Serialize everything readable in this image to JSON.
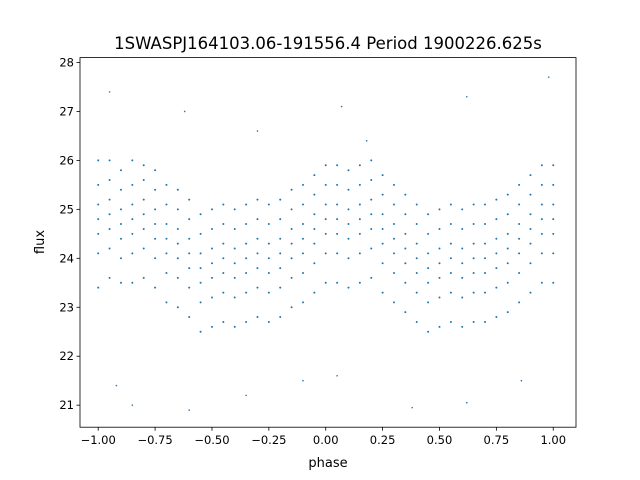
{
  "chart_data": {
    "type": "scatter",
    "title": "1SWASPJ164103.06-191556.4 Period 1900226.625s",
    "xlabel": "phase",
    "ylabel": "flux",
    "xlim": [
      -1.08,
      1.1
    ],
    "ylim": [
      20.55,
      28.1
    ],
    "xticks": [
      -1.0,
      -0.75,
      -0.5,
      -0.25,
      0.0,
      0.25,
      0.5,
      0.75,
      1.0
    ],
    "xtick_labels": [
      "−1.00",
      "−0.75",
      "−0.50",
      "−0.25",
      "0.00",
      "0.25",
      "0.50",
      "0.75",
      "1.00"
    ],
    "yticks": [
      21,
      22,
      23,
      24,
      25,
      26,
      27,
      28
    ],
    "ytick_labels": [
      "21",
      "22",
      "23",
      "24",
      "25",
      "26",
      "27",
      "28"
    ],
    "grid": false,
    "marker_color": "#1f77b4",
    "points": [
      [
        -1.0,
        [
          23.4,
          24.1,
          24.5,
          24.8,
          25.1,
          25.5,
          26.0
        ]
      ],
      [
        -0.95,
        [
          23.6,
          24.2,
          24.6,
          24.9,
          25.2,
          25.6,
          26.0
        ]
      ],
      [
        -0.9,
        [
          23.5,
          24.0,
          24.4,
          24.7,
          25.0,
          25.4,
          25.8
        ]
      ],
      [
        -0.85,
        [
          23.5,
          24.1,
          24.5,
          24.8,
          25.1,
          25.5,
          26.0
        ]
      ],
      [
        -0.8,
        [
          23.6,
          24.2,
          24.6,
          24.9,
          25.2,
          25.6,
          25.9
        ]
      ],
      [
        -0.75,
        [
          23.4,
          24.0,
          24.4,
          24.7,
          25.0,
          25.4,
          25.8
        ]
      ],
      [
        -0.7,
        [
          23.1,
          23.7,
          24.1,
          24.4,
          24.7,
          25.1,
          25.5
        ]
      ],
      [
        -0.65,
        [
          23.0,
          23.6,
          24.0,
          24.3,
          24.6,
          25.0,
          25.4
        ]
      ],
      [
        -0.6,
        [
          22.8,
          23.4,
          23.8,
          24.1,
          24.4,
          24.8,
          25.2
        ]
      ],
      [
        -0.55,
        [
          22.5,
          23.1,
          23.5,
          23.8,
          24.1,
          24.5,
          24.9
        ]
      ],
      [
        -0.5,
        [
          22.6,
          23.2,
          23.6,
          23.9,
          24.2,
          24.6,
          25.0
        ]
      ],
      [
        -0.45,
        [
          22.7,
          23.3,
          23.7,
          24.0,
          24.3,
          24.7,
          25.1
        ]
      ],
      [
        -0.4,
        [
          22.6,
          23.2,
          23.6,
          23.9,
          24.2,
          24.6,
          25.0
        ]
      ],
      [
        -0.35,
        [
          22.7,
          23.3,
          23.7,
          24.0,
          24.3,
          24.7,
          25.1
        ]
      ],
      [
        -0.3,
        [
          22.8,
          23.4,
          23.8,
          24.1,
          24.4,
          24.8,
          25.2
        ]
      ],
      [
        -0.25,
        [
          22.7,
          23.3,
          23.7,
          24.0,
          24.3,
          24.7,
          25.1
        ]
      ],
      [
        -0.2,
        [
          22.8,
          23.4,
          23.8,
          24.1,
          24.4,
          24.8,
          25.2
        ]
      ],
      [
        -0.15,
        [
          23.0,
          23.6,
          24.0,
          24.3,
          24.6,
          25.0,
          25.4
        ]
      ],
      [
        -0.1,
        [
          23.1,
          23.7,
          24.1,
          24.4,
          24.7,
          25.1,
          25.5
        ]
      ],
      [
        -0.05,
        [
          23.3,
          23.9,
          24.3,
          24.6,
          24.9,
          25.3,
          25.7
        ]
      ],
      [
        0.0,
        [
          23.5,
          24.1,
          24.5,
          24.8,
          25.1,
          25.5,
          25.9
        ]
      ],
      [
        0.05,
        [
          23.5,
          24.1,
          24.5,
          24.8,
          25.1,
          25.5,
          25.9
        ]
      ],
      [
        0.1,
        [
          23.4,
          24.0,
          24.4,
          24.7,
          25.0,
          25.4,
          25.8
        ]
      ],
      [
        0.15,
        [
          23.5,
          24.1,
          24.5,
          24.8,
          25.1,
          25.5,
          25.9
        ]
      ],
      [
        0.2,
        [
          23.6,
          24.2,
          24.6,
          24.9,
          25.2,
          25.6,
          26.0
        ]
      ],
      [
        0.25,
        [
          23.3,
          23.9,
          24.3,
          24.6,
          24.9,
          25.3,
          25.7
        ]
      ],
      [
        0.3,
        [
          23.1,
          23.7,
          24.1,
          24.4,
          24.7,
          25.1,
          25.5
        ]
      ],
      [
        0.35,
        [
          22.9,
          23.5,
          23.9,
          24.2,
          24.5,
          24.9,
          25.3
        ]
      ],
      [
        0.4,
        [
          22.7,
          23.3,
          23.7,
          24.0,
          24.3,
          24.7,
          25.1
        ]
      ],
      [
        0.45,
        [
          22.5,
          23.1,
          23.5,
          23.8,
          24.1,
          24.5,
          24.9
        ]
      ],
      [
        0.5,
        [
          22.6,
          23.2,
          23.6,
          23.9,
          24.2,
          24.6,
          25.0
        ]
      ],
      [
        0.55,
        [
          22.7,
          23.3,
          23.7,
          24.0,
          24.3,
          24.7,
          25.1
        ]
      ],
      [
        0.6,
        [
          22.6,
          23.2,
          23.6,
          23.9,
          24.2,
          24.6,
          25.0
        ]
      ],
      [
        0.65,
        [
          22.7,
          23.3,
          23.7,
          24.0,
          24.3,
          24.7,
          25.1
        ]
      ],
      [
        0.7,
        [
          22.7,
          23.3,
          23.7,
          24.0,
          24.3,
          24.7,
          25.1
        ]
      ],
      [
        0.75,
        [
          22.8,
          23.4,
          23.8,
          24.1,
          24.4,
          24.8,
          25.2
        ]
      ],
      [
        0.8,
        [
          22.9,
          23.5,
          23.9,
          24.2,
          24.5,
          24.9,
          25.3
        ]
      ],
      [
        0.85,
        [
          23.1,
          23.7,
          24.1,
          24.4,
          24.7,
          25.1,
          25.5
        ]
      ],
      [
        0.9,
        [
          23.3,
          23.9,
          24.3,
          24.6,
          24.9,
          25.3,
          25.7
        ]
      ],
      [
        0.95,
        [
          23.5,
          24.1,
          24.5,
          24.8,
          25.1,
          25.5,
          25.9
        ]
      ],
      [
        1.0,
        [
          23.5,
          24.1,
          24.5,
          24.8,
          25.1,
          25.5,
          25.9
        ]
      ]
    ],
    "outliers": [
      [
        -0.95,
        27.4
      ],
      [
        -0.62,
        27.0
      ],
      [
        -0.3,
        26.6
      ],
      [
        0.07,
        27.1
      ],
      [
        0.18,
        26.4
      ],
      [
        0.62,
        27.3
      ],
      [
        0.98,
        27.7
      ],
      [
        -0.85,
        21.0
      ],
      [
        -0.6,
        20.9
      ],
      [
        -0.35,
        21.2
      ],
      [
        0.38,
        20.95
      ],
      [
        0.62,
        21.05
      ],
      [
        0.86,
        21.5
      ],
      [
        -0.92,
        21.4
      ],
      [
        0.05,
        21.6
      ],
      [
        -0.1,
        21.5
      ]
    ]
  }
}
